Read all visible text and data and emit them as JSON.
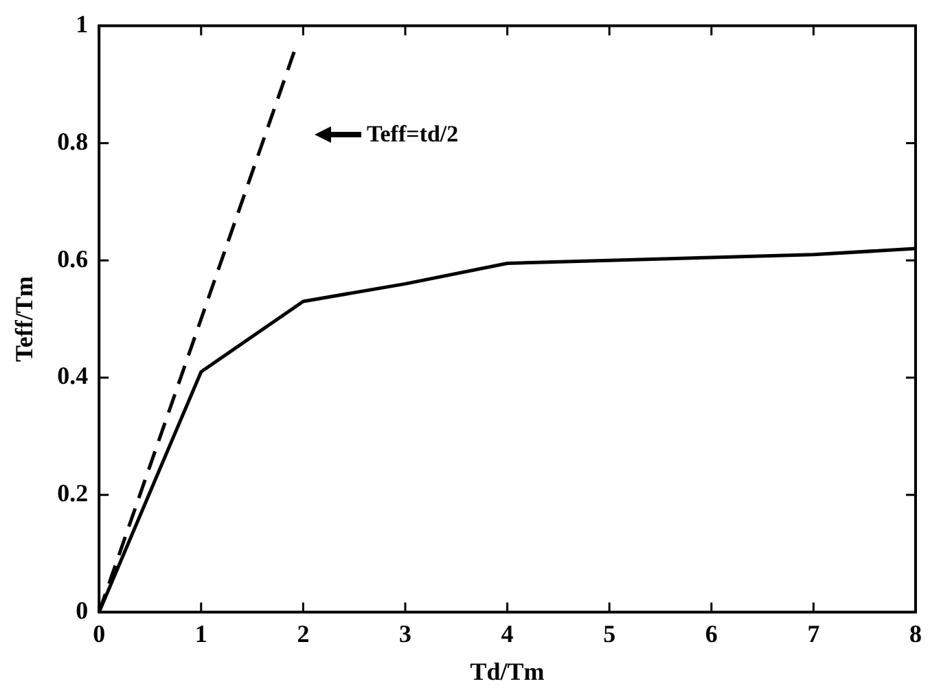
{
  "chart_data": {
    "type": "line",
    "xlabel": "Td/Tm",
    "ylabel": "Teff/Tm",
    "xlim": [
      0,
      8
    ],
    "xticks": [
      0,
      1,
      2,
      3,
      4,
      5,
      6,
      7,
      8
    ],
    "ylim": [
      0,
      1
    ],
    "yticks": [
      0,
      0.2,
      0.4,
      0.6,
      0.8,
      1
    ],
    "grid": false,
    "legend": false,
    "marker": "none",
    "series": [
      {
        "color": "#000000",
        "x": [
          0,
          1,
          2,
          3,
          4,
          5,
          6,
          7,
          8
        ],
        "values": [
          0,
          0.41,
          0.53,
          0.56,
          0.595,
          0.6,
          0.605,
          0.61,
          0.62
        ],
        "line_style": "solid"
      },
      {
        "color": "#000000",
        "x": [
          0,
          1.92
        ],
        "values": [
          0,
          0.96
        ],
        "line_style": "dashed"
      }
    ],
    "annotations": [
      "Teff=td/2"
    ]
  }
}
